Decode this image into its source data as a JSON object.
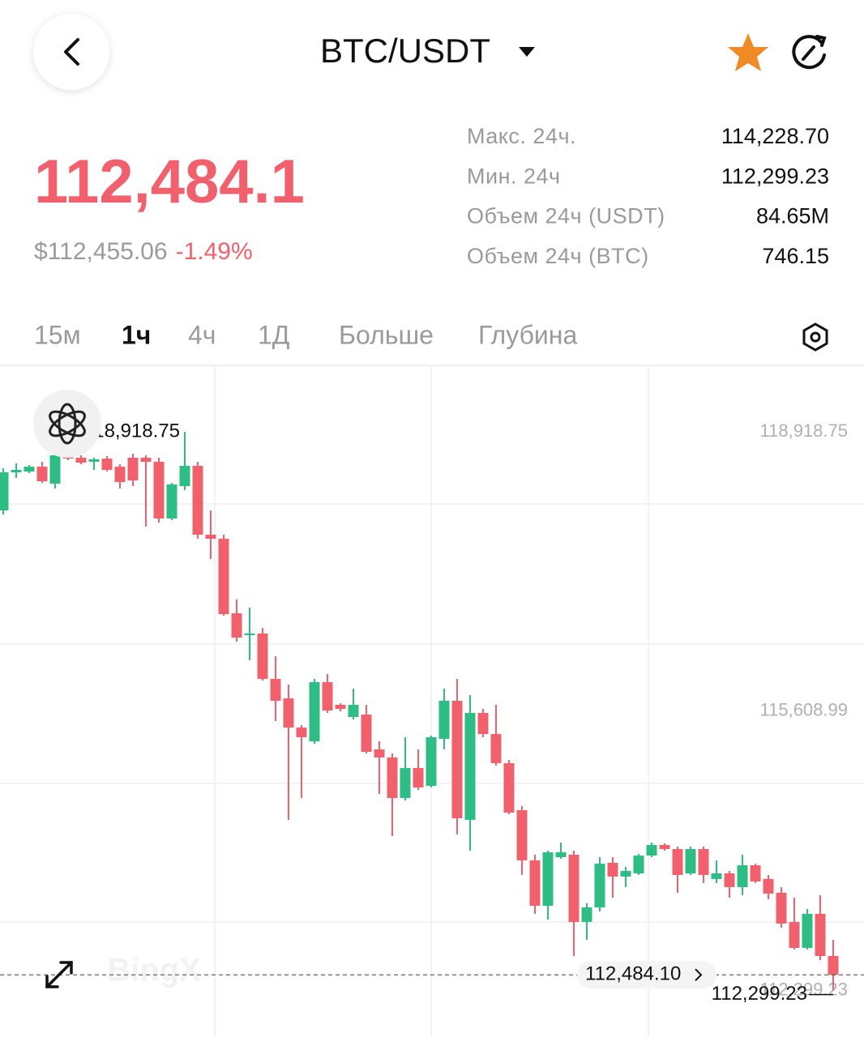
{
  "header": {
    "pair": "BTC/USDT"
  },
  "ticker": {
    "price": "112,484.1",
    "usd_price": "$112,455.06",
    "change": "-1.49%"
  },
  "stats": [
    {
      "label": "Макс. 24ч.",
      "value": "114,228.70"
    },
    {
      "label": "Мин. 24ч",
      "value": "112,299.23"
    },
    {
      "label": "Объем 24ч (USDT)",
      "value": "84.65M"
    },
    {
      "label": "Объем 24ч (BTC)",
      "value": "746.15"
    }
  ],
  "tabs": [
    "15м",
    "1ч",
    "4ч",
    "1Д",
    "Больше",
    "Глубина"
  ],
  "active_tab": 1,
  "chart_data": {
    "type": "candlestick",
    "up_color": "#2ebd85",
    "down_color": "#f0616d",
    "ylim": [
      111748,
      119716
    ],
    "yticks": [
      {
        "value": 118918.75,
        "label": "118,918.75"
      },
      {
        "value": 115608.99,
        "label": "115,608.99"
      },
      {
        "value": 112299.23,
        "label": "112,299.23"
      }
    ],
    "max_label": "118,918.75",
    "min_label": "112,299.23",
    "last_price_label": "112,484.10",
    "watermark": "BingX",
    "open": [
      117988,
      118439,
      118449,
      118506,
      118305,
      118631,
      118612,
      118564,
      118602,
      118506,
      118612,
      118612,
      118564,
      117892,
      118276,
      118516,
      117700,
      117652,
      116769,
      116509,
      116529,
      115991,
      115761,
      115415,
      115252,
      115953,
      115684,
      115540,
      115569,
      115156,
      115060,
      114580,
      114935,
      114724,
      115281,
      115732,
      114321,
      115588,
      115338,
      114993,
      114436,
      113841,
      113303,
      113879,
      113908,
      113111,
      113284,
      113812,
      113649,
      113687,
      113898,
      114023,
      113975,
      113687,
      113975,
      113620,
      113687,
      113524,
      113783,
      113620,
      113457,
      113111,
      112804,
      113207,
      112708
    ],
    "high": [
      118487,
      118545,
      118525,
      118564,
      118708,
      118650,
      118641,
      118612,
      118631,
      118535,
      118660,
      118641,
      118612,
      118314,
      118918.75,
      118564,
      117988,
      117700,
      116932,
      116836,
      116596,
      116260,
      115924,
      115444,
      115991,
      116049,
      115703,
      115876,
      115684,
      115252,
      115108,
      115300,
      115156,
      115319,
      115876,
      115991,
      115799,
      115636,
      115684,
      115031,
      114484,
      113908,
      113956,
      114052,
      113956,
      113332,
      113879,
      113879,
      113764,
      113917,
      114052,
      114042,
      114004,
      114004,
      114004,
      113841,
      113716,
      113908,
      113802,
      113668,
      113524,
      113399,
      113265,
      113428,
      112900
    ],
    "low": [
      117940,
      118372,
      118429,
      118314,
      118247,
      118583,
      118535,
      118468,
      118449,
      118247,
      118276,
      117796,
      117844,
      117873,
      118228,
      117652,
      117412,
      116740,
      116433,
      116212,
      115972,
      115492,
      114321,
      114580,
      115223,
      115588,
      115607,
      115511,
      115108,
      114628,
      114129,
      114551,
      114676,
      114705,
      115156,
      114148,
      113956,
      115300,
      114964,
      114388,
      113668,
      113207,
      113140,
      113860,
      112708,
      112900,
      113236,
      113399,
      113524,
      113668,
      113879,
      113956,
      113457,
      113668,
      113572,
      113572,
      113399,
      113428,
      113572,
      113380,
      113044,
      112785,
      112785,
      112660,
      112299.23
    ],
    "close": [
      118439,
      118468,
      118506,
      118333,
      118641,
      118602,
      118554,
      118593,
      118468,
      118324,
      118343,
      118564,
      117892,
      118295,
      118516,
      117700,
      117652,
      116759,
      116481,
      116529,
      115991,
      115732,
      115415,
      115300,
      115953,
      115617,
      115636,
      115684,
      115127,
      115060,
      114580,
      114935,
      114705,
      115300,
      115732,
      114340,
      115588,
      115338,
      114993,
      114407,
      113841,
      113303,
      113937,
      113937,
      113111,
      113284,
      113802,
      113649,
      113716,
      113898,
      114023,
      113975,
      113668,
      113975,
      113668,
      113687,
      113524,
      113783,
      113591,
      113447,
      113092,
      112804,
      113207,
      112708,
      112484.1
    ]
  }
}
